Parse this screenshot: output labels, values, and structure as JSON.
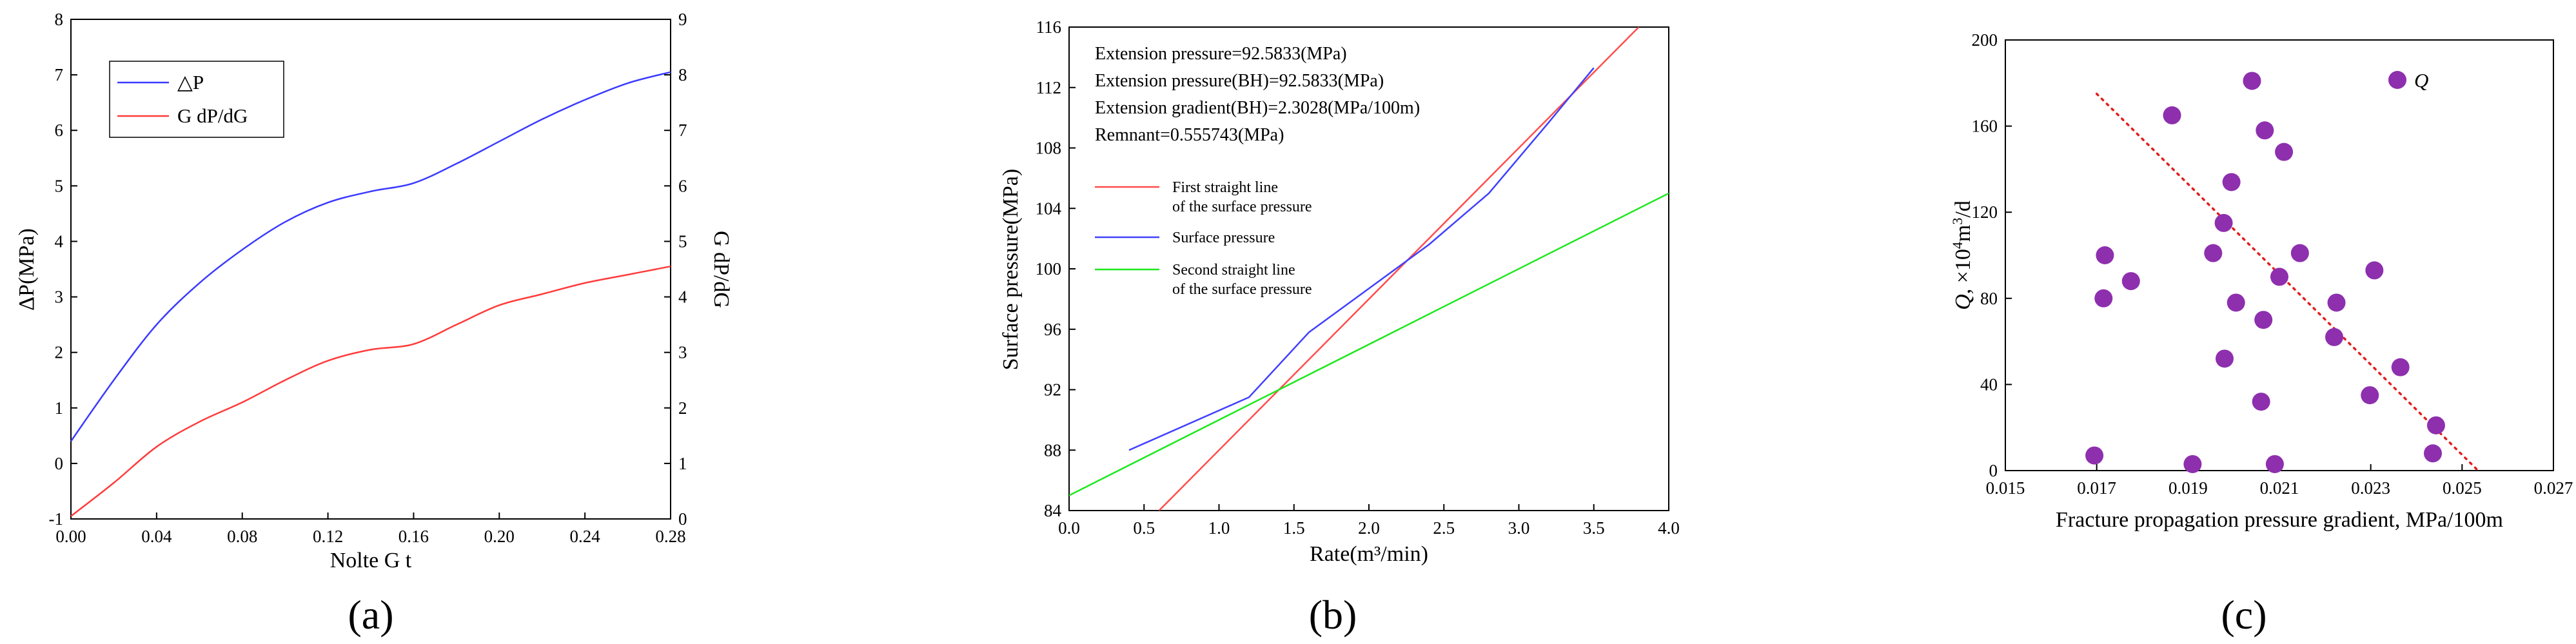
{
  "chart_data": [
    {
      "panel": "(a)",
      "type": "line",
      "xlabel": "Nolte G t",
      "ylabel": "ΔP(MPa)",
      "y2label": "G dP/dG",
      "xlim": [
        0,
        0.28
      ],
      "ylim": [
        -1,
        8
      ],
      "y2lim": [
        0,
        9
      ],
      "xticks": [
        "0.00",
        "0.04",
        "0.08",
        "0.12",
        "0.16",
        "0.20",
        "0.24",
        "0.28"
      ],
      "yticks": [
        "-1",
        "0",
        "1",
        "2",
        "3",
        "4",
        "5",
        "6",
        "7",
        "8"
      ],
      "y2ticks": [
        "0",
        "1",
        "2",
        "3",
        "4",
        "5",
        "6",
        "7",
        "8",
        "9"
      ],
      "legend_position": "top-left",
      "series": [
        {
          "name": "△P",
          "color": "#3b3bff",
          "axis": "left",
          "x": [
            0,
            0.02,
            0.04,
            0.06,
            0.08,
            0.1,
            0.12,
            0.14,
            0.16,
            0.18,
            0.2,
            0.22,
            0.24,
            0.26,
            0.28
          ],
          "y": [
            0.4,
            1.5,
            2.5,
            3.25,
            3.85,
            4.35,
            4.7,
            4.9,
            5.05,
            5.4,
            5.8,
            6.2,
            6.55,
            6.85,
            7.05
          ]
        },
        {
          "name": "G dP/dG",
          "color": "#ff3b3b",
          "axis": "left",
          "x": [
            0,
            0.02,
            0.04,
            0.06,
            0.08,
            0.1,
            0.12,
            0.14,
            0.16,
            0.18,
            0.2,
            0.22,
            0.24,
            0.26,
            0.28
          ],
          "y": [
            -0.95,
            -0.35,
            0.3,
            0.75,
            1.1,
            1.5,
            1.85,
            2.05,
            2.15,
            2.5,
            2.85,
            3.05,
            3.25,
            3.4,
            3.55
          ]
        }
      ]
    },
    {
      "panel": "(b)",
      "type": "line",
      "xlabel": "Rate(m³/min)",
      "ylabel": "Surface pressure(MPa)",
      "xlim": [
        0,
        4.0
      ],
      "ylim": [
        84,
        116
      ],
      "xticks": [
        "0.0",
        "0.5",
        "1.0",
        "1.5",
        "2.0",
        "2.5",
        "3.0",
        "3.5",
        "4.0"
      ],
      "yticks": [
        "84",
        "88",
        "92",
        "96",
        "100",
        "104",
        "108",
        "112",
        "116"
      ],
      "annotations": [
        "Extension pressure=92.5833(MPa)",
        "Extension pressure(BH)=92.5833(MPa)",
        "Extension gradient(BH)=2.3028(MPa/100m)",
        "Remnant=0.555743(MPa)"
      ],
      "series": [
        {
          "name": "First straight line\nof the surface pressure",
          "legend_lines": [
            "First straight line",
            "of the surface pressure"
          ],
          "color": "#ff4d4d",
          "x": [
            0.6,
            3.8
          ],
          "y": [
            84,
            116
          ]
        },
        {
          "name": "Surface pressure",
          "legend_lines": [
            "Surface pressure"
          ],
          "color": "#4040ff",
          "x": [
            0.4,
            1.2,
            1.6,
            2.0,
            2.4,
            2.8,
            3.2,
            3.5
          ],
          "y": [
            88,
            91.5,
            95.8,
            98.7,
            101.6,
            105.0,
            109.7,
            113.3
          ]
        },
        {
          "name": "Second straight line\nof the surface pressure",
          "legend_lines": [
            "Second straight line",
            "of the surface pressure"
          ],
          "color": "#1ee81e",
          "x": [
            0,
            4.0
          ],
          "y": [
            85,
            105
          ]
        }
      ]
    },
    {
      "panel": "(c)",
      "type": "scatter",
      "xlabel": "Fracture propagation pressure gradient, MPa/100m",
      "ylabel": "Q, ×10⁴m³/d",
      "ylabel_parts": [
        "Q",
        ", ×10",
        "4",
        "m",
        "3",
        "/d"
      ],
      "xlim": [
        0.015,
        0.027
      ],
      "ylim": [
        0,
        200
      ],
      "xticks": [
        "0.015",
        "0.017",
        "0.019",
        "0.021",
        "0.023",
        "0.025",
        "0.027"
      ],
      "yticks": [
        "0",
        "40",
        "80",
        "120",
        "160",
        "200"
      ],
      "legend_position": "top-right",
      "series": [
        {
          "name": "Q",
          "color": "#8e2fae",
          "x": [
            0.01695,
            0.01715,
            0.01718,
            0.01775,
            0.01865,
            0.0191,
            0.01955,
            0.01978,
            0.0198,
            0.01995,
            0.02005,
            0.0204,
            0.0206,
            0.02065,
            0.02068,
            0.0209,
            0.021,
            0.0211,
            0.02145,
            0.0222,
            0.02225,
            0.02298,
            0.02308,
            0.02365,
            0.02436,
            0.02443
          ],
          "y": [
            7,
            80,
            100,
            88,
            165,
            3,
            101,
            115,
            52,
            134,
            78,
            181,
            32,
            70,
            158,
            3,
            90,
            148,
            101,
            62,
            78,
            35,
            93,
            48,
            8,
            21
          ]
        },
        {
          "name": "trend",
          "type": "line",
          "style": "dotted",
          "color": "#e02020",
          "x": [
            0.017,
            0.02535
          ],
          "y": [
            175,
            0
          ]
        }
      ]
    }
  ],
  "panel_labels": [
    "(a)",
    "(b)",
    "(c)"
  ]
}
